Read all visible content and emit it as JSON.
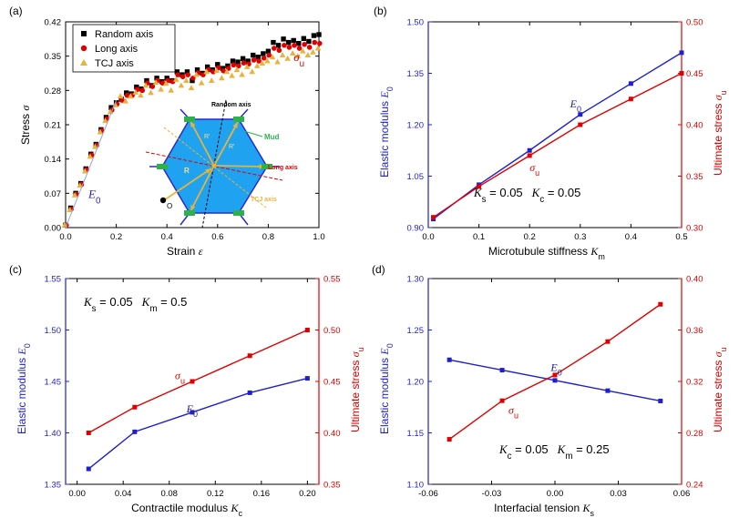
{
  "colors": {
    "blue": "#1f1fd0",
    "red": "#e00000",
    "black": "#000000",
    "orange": "#e9b23a",
    "hexfill": "#1fa3f0",
    "green": "#2eb14c"
  },
  "chart_data": [
    {
      "id": "a",
      "panel_label": "(a)",
      "type": "scatter",
      "xlabel": "Strain",
      "xlabel_sym": "ε",
      "ylabel": "Stress",
      "ylabel_sym": "σ",
      "xlim": [
        0,
        1
      ],
      "ylim": [
        0,
        0.42
      ],
      "xticks": [
        "0.0",
        "0.2",
        "0.4",
        "0.6",
        "0.8",
        "1.0"
      ],
      "yticks": [
        "0.00",
        "0.07",
        "0.14",
        "0.21",
        "0.28",
        "0.35",
        "0.42"
      ],
      "legend_position": "top-left",
      "annotations": [
        "E0",
        "σu"
      ],
      "series": [
        {
          "name": "Random axis",
          "color": "#000000",
          "marker": "square",
          "x": [
            0.0,
            0.02,
            0.04,
            0.06,
            0.08,
            0.1,
            0.12,
            0.14,
            0.16,
            0.18,
            0.2,
            0.22,
            0.24,
            0.26,
            0.28,
            0.3,
            0.32,
            0.34,
            0.36,
            0.38,
            0.4,
            0.42,
            0.44,
            0.46,
            0.48,
            0.5,
            0.52,
            0.54,
            0.56,
            0.58,
            0.6,
            0.62,
            0.64,
            0.66,
            0.68,
            0.7,
            0.72,
            0.74,
            0.76,
            0.78,
            0.8,
            0.82,
            0.84,
            0.86,
            0.88,
            0.9,
            0.92,
            0.94,
            0.96,
            0.98,
            1.0
          ],
          "y": [
            0.005,
            0.04,
            0.07,
            0.09,
            0.12,
            0.15,
            0.17,
            0.2,
            0.225,
            0.245,
            0.255,
            0.262,
            0.275,
            0.273,
            0.287,
            0.283,
            0.3,
            0.29,
            0.305,
            0.298,
            0.305,
            0.3,
            0.318,
            0.312,
            0.318,
            0.3,
            0.322,
            0.315,
            0.328,
            0.322,
            0.333,
            0.325,
            0.33,
            0.34,
            0.338,
            0.345,
            0.34,
            0.352,
            0.348,
            0.355,
            0.36,
            0.378,
            0.372,
            0.385,
            0.378,
            0.382,
            0.376,
            0.386,
            0.38,
            0.392,
            0.394
          ]
        },
        {
          "name": "Long axis",
          "color": "#e00000",
          "marker": "circle",
          "x": [
            0.0,
            0.02,
            0.04,
            0.06,
            0.08,
            0.1,
            0.12,
            0.14,
            0.16,
            0.18,
            0.2,
            0.22,
            0.24,
            0.26,
            0.28,
            0.3,
            0.32,
            0.34,
            0.36,
            0.38,
            0.4,
            0.42,
            0.44,
            0.46,
            0.48,
            0.5,
            0.52,
            0.54,
            0.56,
            0.58,
            0.6,
            0.62,
            0.64,
            0.66,
            0.68,
            0.7,
            0.72,
            0.74,
            0.76,
            0.78,
            0.8,
            0.82,
            0.84,
            0.86,
            0.88,
            0.9,
            0.92,
            0.94,
            0.96,
            0.98,
            1.0
          ],
          "y": [
            0.005,
            0.038,
            0.068,
            0.088,
            0.118,
            0.148,
            0.168,
            0.198,
            0.222,
            0.24,
            0.252,
            0.26,
            0.27,
            0.27,
            0.282,
            0.28,
            0.295,
            0.288,
            0.3,
            0.295,
            0.3,
            0.298,
            0.312,
            0.308,
            0.312,
            0.305,
            0.316,
            0.312,
            0.322,
            0.318,
            0.326,
            0.32,
            0.325,
            0.332,
            0.33,
            0.336,
            0.334,
            0.342,
            0.34,
            0.346,
            0.352,
            0.366,
            0.362,
            0.372,
            0.368,
            0.372,
            0.366,
            0.374,
            0.368,
            0.378,
            0.376
          ]
        },
        {
          "name": "TCJ axis",
          "color": "#e9b23a",
          "marker": "triangle",
          "x": [
            0.0,
            0.02,
            0.04,
            0.06,
            0.08,
            0.1,
            0.12,
            0.14,
            0.16,
            0.18,
            0.2,
            0.22,
            0.24,
            0.26,
            0.28,
            0.3,
            0.32,
            0.34,
            0.36,
            0.38,
            0.4,
            0.42,
            0.44,
            0.46,
            0.48,
            0.5,
            0.52,
            0.54,
            0.56,
            0.58,
            0.6,
            0.62,
            0.64,
            0.66,
            0.68,
            0.7,
            0.72,
            0.74,
            0.76,
            0.78,
            0.8,
            0.82,
            0.84,
            0.86,
            0.88,
            0.9,
            0.92,
            0.94,
            0.96,
            0.98,
            1.0
          ],
          "y": [
            0.005,
            0.036,
            0.066,
            0.086,
            0.115,
            0.145,
            0.165,
            0.195,
            0.218,
            0.236,
            0.25,
            0.268,
            0.258,
            0.268,
            0.276,
            0.27,
            0.29,
            0.275,
            0.296,
            0.282,
            0.294,
            0.28,
            0.302,
            0.29,
            0.3,
            0.285,
            0.312,
            0.295,
            0.318,
            0.3,
            0.32,
            0.305,
            0.318,
            0.31,
            0.322,
            0.312,
            0.328,
            0.318,
            0.33,
            0.335,
            0.34,
            0.348,
            0.338,
            0.352,
            0.345,
            0.356,
            0.35,
            0.36,
            0.352,
            0.358,
            0.366
          ]
        }
      ],
      "inset": {
        "labels": {
          "random": "Random axis",
          "long": "Long axis",
          "tcj": "TCJ axis",
          "mud": "Mud",
          "origin": "O",
          "r": "R",
          "r1": "R'",
          "r2": "R'"
        }
      }
    },
    {
      "id": "b",
      "panel_label": "(b)",
      "type": "line",
      "xlabel": "Microtubule stiffness",
      "xlabel_sym": "K",
      "xlabel_sub": "m",
      "ylabel": "Elastic modulus",
      "ylabel_sym": "E",
      "ylabel_sub": "0",
      "y2label": "Ultimate stress",
      "y2label_sym": "σ",
      "y2label_sub": "u",
      "xlim": [
        0,
        0.5
      ],
      "ylim": [
        0.9,
        1.5
      ],
      "y2lim": [
        0.3,
        0.5
      ],
      "xticks": [
        "0.0",
        "0.1",
        "0.2",
        "0.3",
        "0.4",
        "0.5"
      ],
      "yticks": [
        "0.90",
        "1.05",
        "1.20",
        "1.35",
        "1.50"
      ],
      "y2ticks": [
        "0.30",
        "0.35",
        "0.40",
        "0.45",
        "0.50"
      ],
      "params": "K s = 0.05   K c = 0.05",
      "series": [
        {
          "name": "E0",
          "axis": "left",
          "color": "#1f1fd0",
          "x": [
            0.01,
            0.1,
            0.2,
            0.3,
            0.4,
            0.5
          ],
          "y": [
            0.925,
            1.025,
            1.125,
            1.23,
            1.32,
            1.41
          ]
        },
        {
          "name": "σu",
          "axis": "right",
          "color": "#e00000",
          "x": [
            0.01,
            0.1,
            0.2,
            0.3,
            0.4,
            0.5
          ],
          "y": [
            0.31,
            0.34,
            0.37,
            0.4,
            0.425,
            0.45
          ]
        }
      ]
    },
    {
      "id": "c",
      "panel_label": "(c)",
      "type": "line",
      "xlabel": "Contractile modulus",
      "xlabel_sym": "K",
      "xlabel_sub": "c",
      "ylabel": "Elastic modulus",
      "ylabel_sym": "E",
      "ylabel_sub": "0",
      "y2label": "Ultimate stress",
      "y2label_sym": "σ",
      "y2label_sub": "u",
      "xlim": [
        -0.01,
        0.21
      ],
      "ylim": [
        1.35,
        1.55
      ],
      "y2lim": [
        0.35,
        0.55
      ],
      "xticks": [
        "0.00",
        "0.04",
        "0.08",
        "0.12",
        "0.16",
        "0.20"
      ],
      "yticks": [
        "1.35",
        "1.40",
        "1.45",
        "1.50",
        "1.55"
      ],
      "y2ticks": [
        "0.35",
        "0.40",
        "0.45",
        "0.50",
        "0.55"
      ],
      "params": "K s = 0.05   K m = 0.5",
      "series": [
        {
          "name": "E0",
          "axis": "left",
          "color": "#1f1fd0",
          "x": [
            0.01,
            0.05,
            0.1,
            0.15,
            0.2
          ],
          "y": [
            1.365,
            1.401,
            1.42,
            1.439,
            1.453
          ]
        },
        {
          "name": "σu",
          "axis": "right",
          "color": "#e00000",
          "x": [
            0.01,
            0.05,
            0.1,
            0.15,
            0.2
          ],
          "y": [
            0.4,
            0.425,
            0.45,
            0.475,
            0.5
          ]
        }
      ]
    },
    {
      "id": "d",
      "panel_label": "(d)",
      "type": "line",
      "xlabel": "Interfacial tension",
      "xlabel_sym": "K",
      "xlabel_sub": "s",
      "ylabel": "Elastic modulus",
      "ylabel_sym": "E",
      "ylabel_sub": "0",
      "y2label": "Ultimate stress",
      "y2label_sym": "σ",
      "y2label_sub": "u",
      "xlim": [
        -0.06,
        0.06
      ],
      "ylim": [
        1.1,
        1.3
      ],
      "y2lim": [
        0.24,
        0.4
      ],
      "xticks": [
        "-0.06",
        "-0.03",
        "0.00",
        "0.03",
        "0.06"
      ],
      "yticks": [
        "1.10",
        "1.15",
        "1.20",
        "1.25",
        "1.30"
      ],
      "y2ticks": [
        "0.24",
        "0.28",
        "0.32",
        "0.36",
        "0.40"
      ],
      "params": "K c = 0.05   K m = 0.25",
      "series": [
        {
          "name": "E0",
          "axis": "left",
          "color": "#1f1fd0",
          "x": [
            -0.05,
            -0.025,
            0,
            0.025,
            0.05
          ],
          "y": [
            1.221,
            1.211,
            1.201,
            1.191,
            1.181
          ]
        },
        {
          "name": "σu",
          "axis": "right",
          "color": "#e00000",
          "x": [
            -0.05,
            -0.025,
            0,
            0.025,
            0.05
          ],
          "y": [
            0.275,
            0.305,
            0.325,
            0.351,
            0.38
          ]
        }
      ]
    }
  ]
}
